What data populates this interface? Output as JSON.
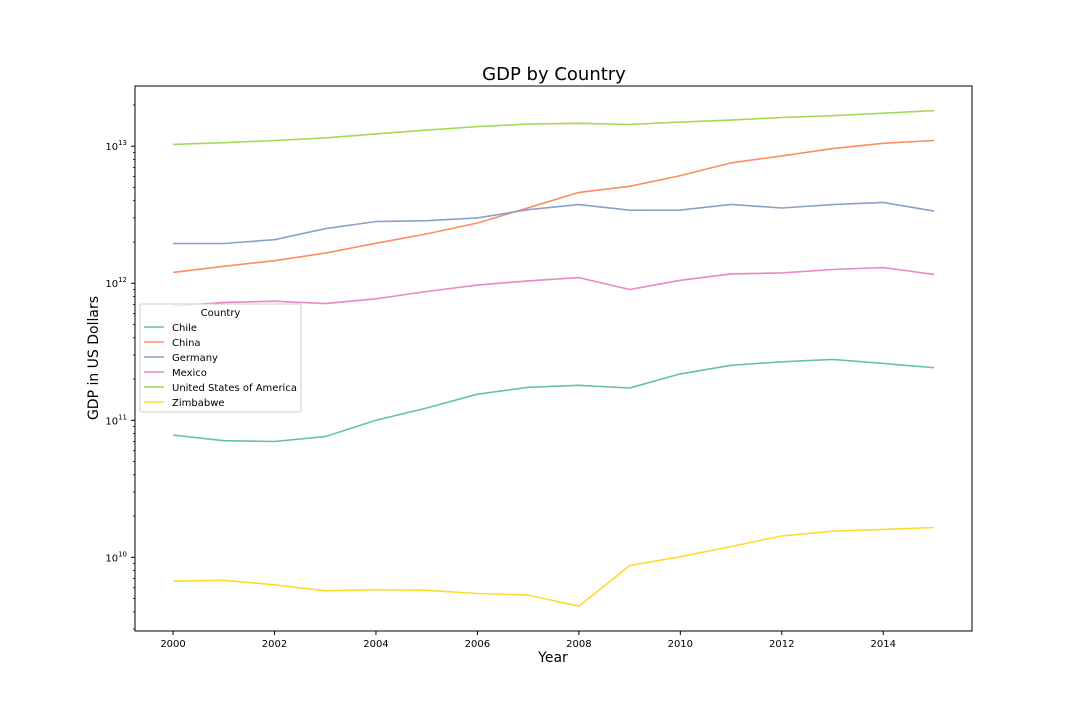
{
  "chart_data": {
    "type": "line",
    "title": "GDP by Country",
    "xlabel": "Year",
    "ylabel": "GDP in US Dollars",
    "yscale": "log",
    "xlim": [
      1999.25,
      2015.75
    ],
    "ylim": [
      2900000000.0,
      27500000000000.0
    ],
    "x_ticks": [
      2000,
      2002,
      2004,
      2006,
      2008,
      2010,
      2012,
      2014
    ],
    "y_ticks": [
      {
        "value": 10000000000.0,
        "base": "10",
        "exp": "10"
      },
      {
        "value": 100000000000.0,
        "base": "10",
        "exp": "11"
      },
      {
        "value": 1000000000000.0,
        "base": "10",
        "exp": "12"
      },
      {
        "value": 10000000000000.0,
        "base": "10",
        "exp": "13"
      }
    ],
    "grid": false,
    "legend": {
      "title": "Country",
      "position": "center-left"
    },
    "x": [
      2000,
      2001,
      2002,
      2003,
      2004,
      2005,
      2006,
      2007,
      2008,
      2009,
      2010,
      2011,
      2012,
      2013,
      2014,
      2015
    ],
    "series": [
      {
        "name": "Chile",
        "color": "#66c2a5",
        "values": [
          78000000000.0,
          71000000000.0,
          70000000000.0,
          76000000000.0,
          100000000000.0,
          123000000000.0,
          155000000000.0,
          174000000000.0,
          180000000000.0,
          172000000000.0,
          218000000000.0,
          252000000000.0,
          267000000000.0,
          278000000000.0,
          260000000000.0,
          242000000000.0
        ]
      },
      {
        "name": "China",
        "color": "#fc8d62",
        "values": [
          1200000000000.0,
          1330000000000.0,
          1460000000000.0,
          1660000000000.0,
          1960000000000.0,
          2290000000000.0,
          2750000000000.0,
          3550000000000.0,
          4600000000000.0,
          5100000000000.0,
          6100000000000.0,
          7550000000000.0,
          8500000000000.0,
          9600000000000.0,
          10500000000000.0,
          11000000000000.0
        ]
      },
      {
        "name": "Germany",
        "color": "#8da0cb",
        "values": [
          1950000000000.0,
          1950000000000.0,
          2080000000000.0,
          2500000000000.0,
          2820000000000.0,
          2860000000000.0,
          3000000000000.0,
          3440000000000.0,
          3750000000000.0,
          3410000000000.0,
          3420000000000.0,
          3760000000000.0,
          3540000000000.0,
          3750000000000.0,
          3890000000000.0,
          3360000000000.0
        ]
      },
      {
        "name": "Mexico",
        "color": "#e78ac3",
        "values": [
          680000000000.0,
          725000000000.0,
          740000000000.0,
          710000000000.0,
          770000000000.0,
          870000000000.0,
          970000000000.0,
          1040000000000.0,
          1100000000000.0,
          900000000000.0,
          1050000000000.0,
          1170000000000.0,
          1190000000000.0,
          1260000000000.0,
          1300000000000.0,
          1160000000000.0
        ]
      },
      {
        "name": "United States of America",
        "color": "#a6d854",
        "values": [
          10300000000000.0,
          10600000000000.0,
          11000000000000.0,
          11500000000000.0,
          12300000000000.0,
          13100000000000.0,
          13900000000000.0,
          14500000000000.0,
          14700000000000.0,
          14400000000000.0,
          15000000000000.0,
          15500000000000.0,
          16200000000000.0,
          16700000000000.0,
          17400000000000.0,
          18200000000000.0
        ]
      },
      {
        "name": "Zimbabwe",
        "color": "#ffd92f",
        "values": [
          6700000000.0,
          6800000000.0,
          6300000000.0,
          5700000000.0,
          5800000000.0,
          5750000000.0,
          5450000000.0,
          5300000000.0,
          4400000000.0,
          8700000000.0,
          10100000000.0,
          12000000000.0,
          14300000000.0,
          15500000000.0,
          16000000000.0,
          16500000000.0
        ]
      }
    ]
  }
}
